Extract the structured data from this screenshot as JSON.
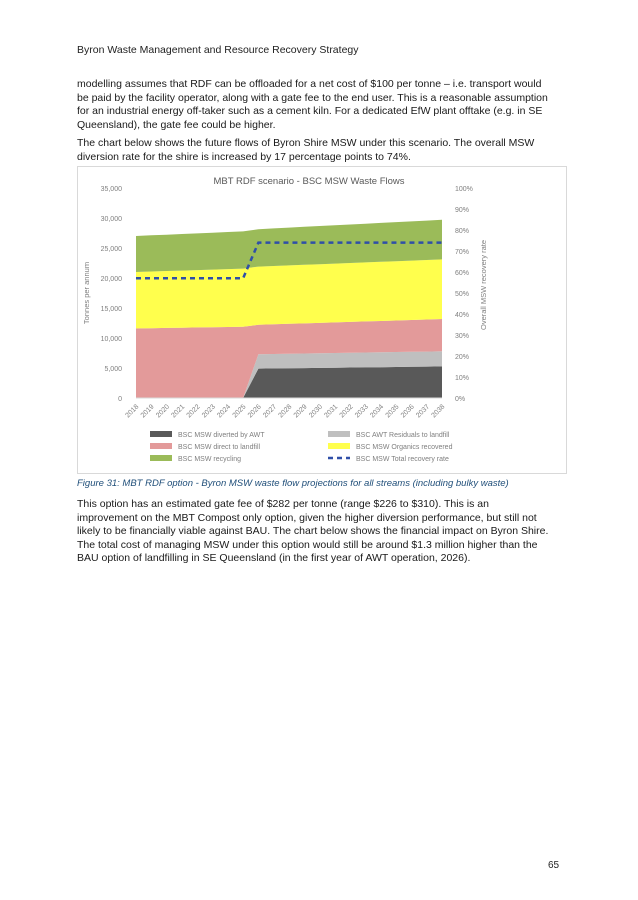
{
  "header": {
    "title": "Byron Waste Management and Resource Recovery Strategy"
  },
  "paragraphs": {
    "p1": [
      "modelling assumes that RDF can be offloaded for a net cost of $100 per tonne – i.e. transport would",
      "be paid by the facility operator, along with a gate fee to the end user. This is a reasonable assumption",
      "for an industrial energy off-taker such as a cement kiln. For a dedicated EfW plant offtake (e.g. in SE",
      "Queensland), the gate fee could be higher."
    ],
    "p2": [
      "The chart below shows the future flows of Byron Shire MSW under this scenario. The overall MSW",
      "diversion rate for the shire is increased by 17 percentage points to 74%."
    ],
    "p3": [
      "This option has an estimated gate fee of $282 per tonne (range $226 to $310). This is an",
      "improvement on the MBT Compost only option, given the higher diversion performance, but still not",
      "likely to be financially viable against BAU. The chart below shows the financial impact on Byron Shire.",
      "The total cost of managing MSW under this option would still be around $1.3 million higher than the",
      "BAU option of landfilling in SE Queensland (in the first year of AWT operation, 2026)."
    ]
  },
  "caption": "Figure 31: MBT RDF option - Byron MSW waste flow projections for all streams (including bulky waste)",
  "page_number": "65",
  "chart_data": {
    "type": "area",
    "title": "MBT RDF scenario - BSC MSW Waste Flows",
    "ylabel": "Tonnes per annum",
    "y2label": "Overall MSW recovery rate",
    "ylim": [
      0,
      35000
    ],
    "y2lim": [
      0,
      1
    ],
    "y_ticks": [
      "0",
      "5,000",
      "10,000",
      "15,000",
      "20,000",
      "25,000",
      "30,000",
      "35,000"
    ],
    "y2_ticks": [
      "0%",
      "10%",
      "20%",
      "30%",
      "40%",
      "50%",
      "60%",
      "70%",
      "80%",
      "90%",
      "100%"
    ],
    "x": [
      "2018",
      "2019",
      "2020",
      "2021",
      "2022",
      "2023",
      "2024",
      "2025",
      "2026",
      "2027",
      "2028",
      "2029",
      "2030",
      "2031",
      "2032",
      "2033",
      "2034",
      "2035",
      "2036",
      "2037",
      "2038"
    ],
    "colors": {
      "awt": "#595959",
      "residuals": "#bfbfbf",
      "landfill": "#e39a9a",
      "organics": "#ffff4d",
      "recycling": "#9bbb59",
      "rate": "#2f4fa8"
    },
    "series": [
      {
        "name": "BSC MSW diverted by AWT",
        "key": "awt",
        "values": [
          0,
          0,
          0,
          0,
          0,
          0,
          0,
          0,
          4900,
          4930,
          4960,
          4990,
          5020,
          5050,
          5080,
          5110,
          5140,
          5170,
          5200,
          5230,
          5260
        ]
      },
      {
        "name": "BSC AWT Residuals to landfill",
        "key": "residuals",
        "values": [
          0,
          0,
          0,
          0,
          0,
          0,
          0,
          0,
          2400,
          2410,
          2420,
          2430,
          2440,
          2450,
          2460,
          2470,
          2480,
          2490,
          2500,
          2510,
          2520
        ]
      },
      {
        "name": "BSC MSW direct to landfill",
        "key": "landfill",
        "values": [
          11600,
          11640,
          11680,
          11720,
          11760,
          11800,
          11840,
          11880,
          4900,
          4940,
          4980,
          5020,
          5060,
          5100,
          5140,
          5180,
          5220,
          5260,
          5300,
          5340,
          5380
        ]
      },
      {
        "name": "BSC MSW Organics recovered",
        "key": "organics",
        "values": [
          9400,
          9440,
          9480,
          9520,
          9560,
          9600,
          9640,
          9680,
          9700,
          9720,
          9740,
          9760,
          9780,
          9800,
          9820,
          9840,
          9860,
          9880,
          9900,
          9920,
          9940
        ]
      },
      {
        "name": "BSC MSW recycling",
        "key": "recycling",
        "values": [
          6000,
          6030,
          6060,
          6090,
          6120,
          6150,
          6180,
          6210,
          6240,
          6270,
          6300,
          6330,
          6360,
          6390,
          6420,
          6450,
          6480,
          6510,
          6540,
          6570,
          6600
        ]
      }
    ],
    "rate_series": {
      "name": "BSC MSW Total recovery rate",
      "key": "rate",
      "values": [
        0.57,
        0.57,
        0.57,
        0.57,
        0.57,
        0.57,
        0.57,
        0.57,
        0.74,
        0.74,
        0.74,
        0.74,
        0.74,
        0.74,
        0.74,
        0.74,
        0.74,
        0.74,
        0.74,
        0.74,
        0.74
      ]
    },
    "legend": [
      {
        "label": "BSC MSW diverted by AWT",
        "key": "awt",
        "style": "box"
      },
      {
        "label": "BSC AWT Residuals to landfill",
        "key": "residuals",
        "style": "box"
      },
      {
        "label": "BSC MSW direct to landfill",
        "key": "landfill",
        "style": "box"
      },
      {
        "label": "BSC MSW Organics recovered",
        "key": "organics",
        "style": "box"
      },
      {
        "label": "BSC MSW recycling",
        "key": "recycling",
        "style": "box"
      },
      {
        "label": "BSC MSW Total recovery rate",
        "key": "rate",
        "style": "dash"
      }
    ],
    "legend_placement": "bottom",
    "grid": false
  }
}
